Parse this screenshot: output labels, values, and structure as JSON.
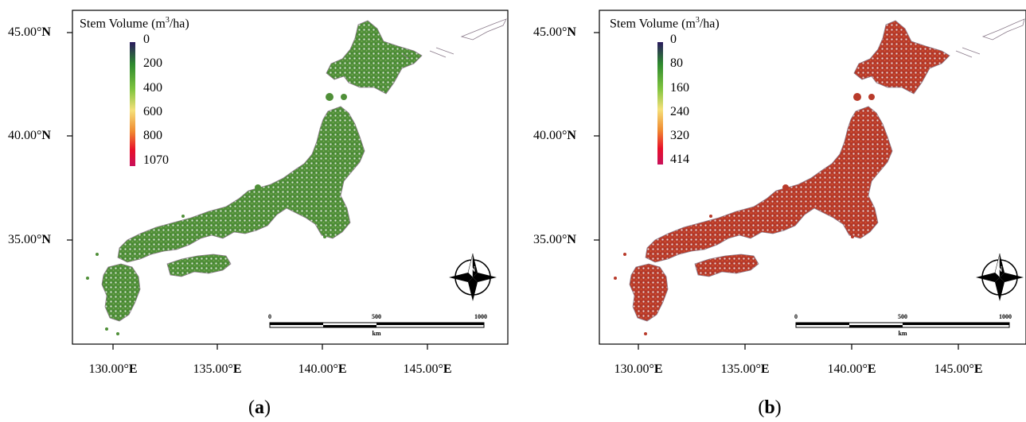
{
  "panels": [
    {
      "id": "a",
      "label_open": "(",
      "label_letter": "a",
      "label_close": ")",
      "legend": {
        "title_main": "Stem Volume (m",
        "title_sup": "3",
        "title_end": "/ha)",
        "ticks": [
          "0",
          "200",
          "400",
          "600",
          "800",
          "1070"
        ],
        "colors": [
          "#2a1a5e",
          "#2e8a2e",
          "#7fc43e",
          "#f5e07a",
          "#f08a30",
          "#e8102a",
          "#c8105a"
        ]
      },
      "scalebar": {
        "ticks": [
          "0",
          "500",
          "1000"
        ],
        "unit": "km"
      }
    },
    {
      "id": "b",
      "label_open": "(",
      "label_letter": "b",
      "label_close": ")",
      "legend": {
        "title_main": "Stem Volume (m",
        "title_sup": "3",
        "title_end": "/ha)",
        "ticks": [
          "0",
          "80",
          "160",
          "240",
          "320",
          "414"
        ],
        "colors": [
          "#2a1a5e",
          "#2e8a2e",
          "#7fc43e",
          "#f5e07a",
          "#f08a30",
          "#e8102a",
          "#c8105a"
        ]
      },
      "scalebar": {
        "ticks": [
          "0",
          "500",
          "1000"
        ],
        "unit": "km"
      }
    }
  ],
  "axes": {
    "lat_ticks": [
      {
        "num": "45.00°",
        "hemi": "N"
      },
      {
        "num": "40.00°",
        "hemi": "N"
      },
      {
        "num": "35.00°",
        "hemi": "N"
      }
    ],
    "lon_ticks": [
      {
        "num": "130.00°",
        "hemi": "E"
      },
      {
        "num": "135.00°",
        "hemi": "E"
      },
      {
        "num": "140.00°",
        "hemi": "E"
      },
      {
        "num": "145.00°",
        "hemi": "E"
      }
    ]
  },
  "compass": {
    "north_letter": "N"
  },
  "map_colors": {
    "a_land": "#4f8f38",
    "a_land_light": "#7aaa55",
    "b_land": "#b83a2a",
    "b_land_dark": "#8a2a22",
    "outline": "#8a7a8a"
  }
}
